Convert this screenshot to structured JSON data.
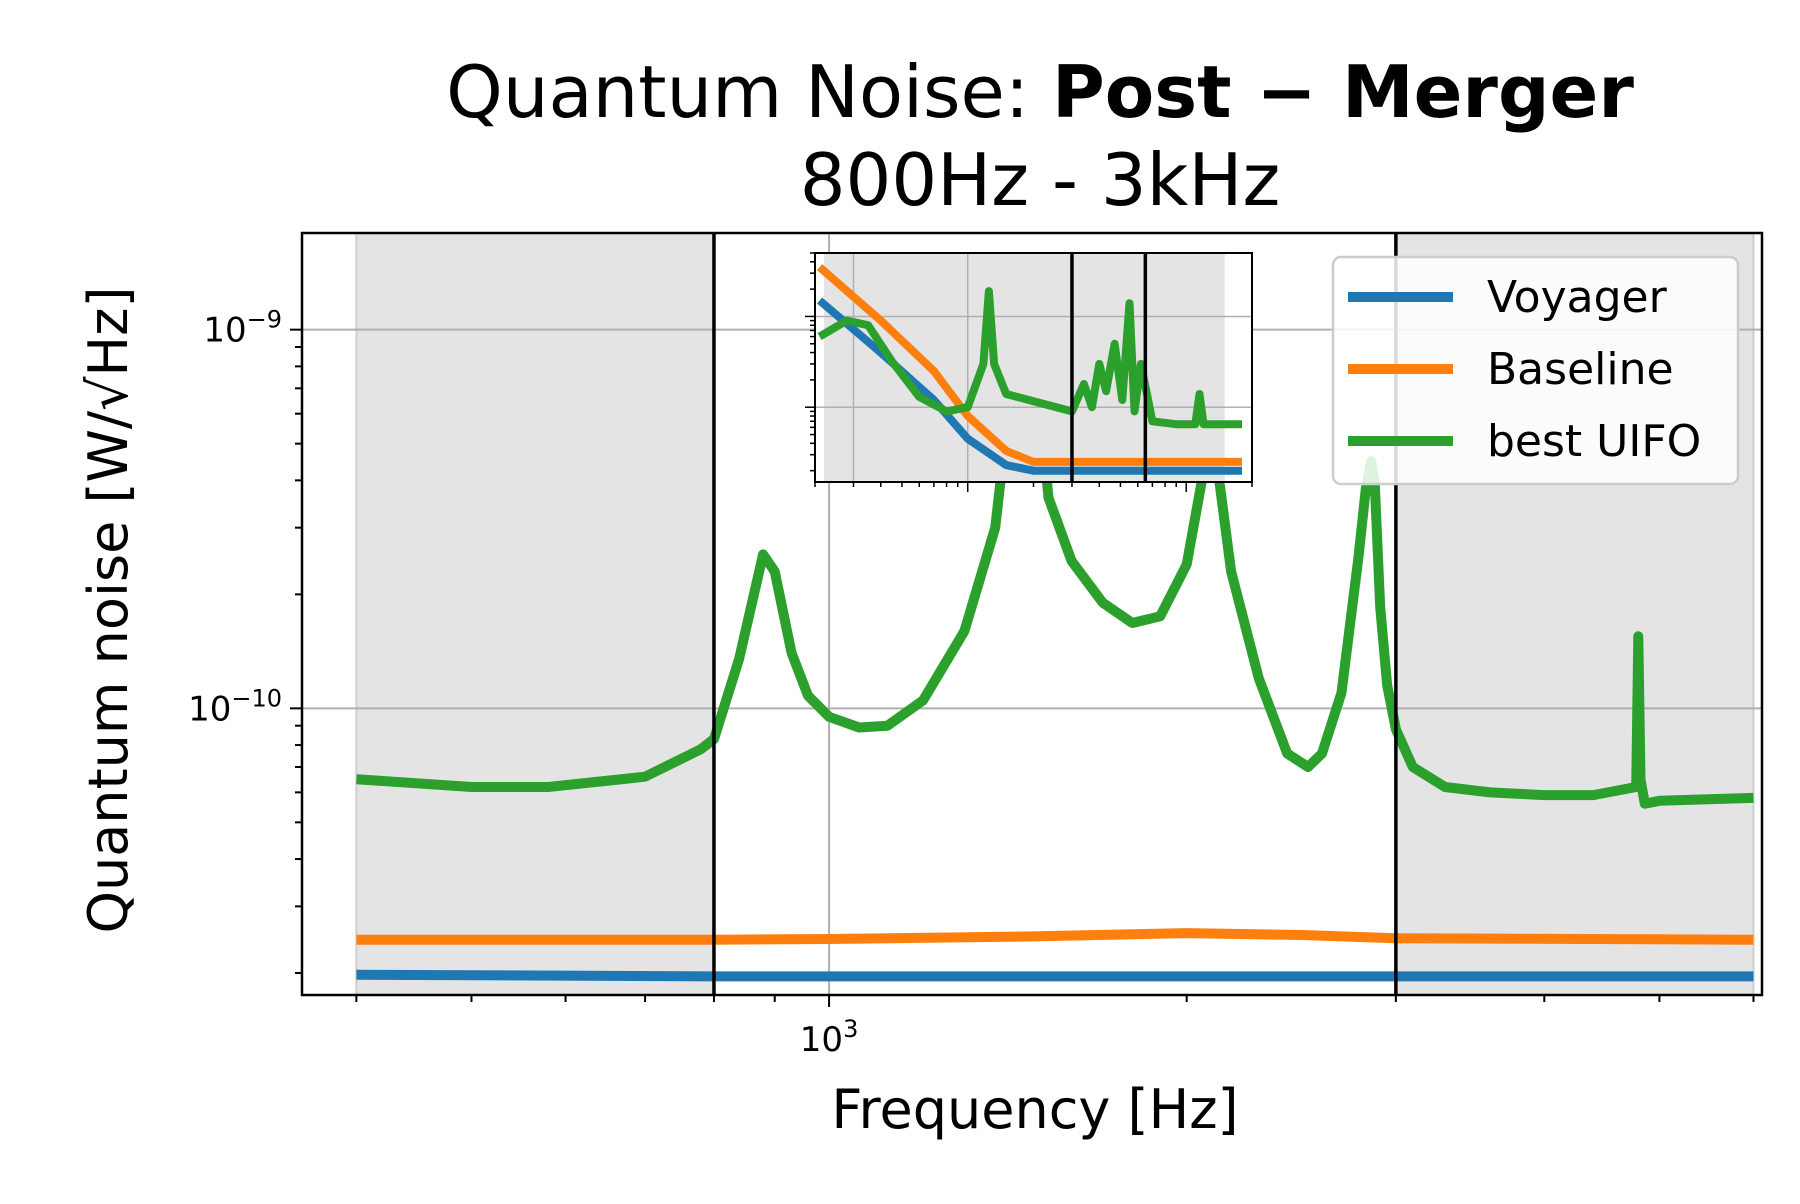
{
  "chart_data": {
    "type": "line",
    "title_prefix": "Quantum Noise: ",
    "title_bold": "Post − Merger",
    "subtitle": "800Hz - 3kHz",
    "xlabel": "Frequency [Hz]",
    "ylabel": "Quantum noise [W/√Hz]",
    "xscale": "log",
    "yscale": "log",
    "xlim": [
      360,
      6100
    ],
    "ylim": [
      1.75e-11,
      1.8e-09
    ],
    "x_tick_label": "10",
    "x_tick_label_exp": "3",
    "y_tick_labels": [
      {
        "base": "10",
        "exp": "−9",
        "value": 1e-09
      },
      {
        "base": "10",
        "exp": "−10",
        "value": 1e-10
      }
    ],
    "grid": true,
    "legend_position": "top-right",
    "shaded_regions": [
      [
        400,
        800
      ],
      [
        3000,
        6000
      ]
    ],
    "vertical_lines": [
      800,
      3000
    ],
    "series": [
      {
        "name": "Voyager",
        "color": "#1f77b4",
        "x": [
          400,
          800,
          1000,
          2000,
          3000,
          6000
        ],
        "y": [
          1.98e-11,
          1.96e-11,
          1.96e-11,
          1.96e-11,
          1.96e-11,
          1.96e-11
        ]
      },
      {
        "name": "Baseline",
        "color": "#ff7f0e",
        "x": [
          400,
          800,
          1000,
          1500,
          2000,
          2500,
          3000,
          6000
        ],
        "y": [
          2.45e-11,
          2.45e-11,
          2.46e-11,
          2.5e-11,
          2.55e-11,
          2.52e-11,
          2.47e-11,
          2.45e-11
        ]
      },
      {
        "name": "best UIFO",
        "color": "#2ca02c",
        "x": [
          400,
          500,
          580,
          700,
          780,
          800,
          840,
          880,
          900,
          930,
          960,
          1000,
          1060,
          1120,
          1200,
          1300,
          1380,
          1430,
          1460,
          1490,
          1530,
          1600,
          1700,
          1800,
          1900,
          2000,
          2060,
          2090,
          2120,
          2180,
          2300,
          2430,
          2530,
          2600,
          2700,
          2790,
          2830,
          2860,
          2880,
          2910,
          2950,
          3000,
          3100,
          3300,
          3600,
          4000,
          4400,
          4780,
          4800,
          4820,
          4860,
          5000,
          6000
        ],
        "y": [
          6.5e-11,
          6.2e-11,
          6.2e-11,
          6.6e-11,
          7.8e-11,
          8.3e-11,
          1.35e-10,
          2.55e-10,
          2.3e-10,
          1.4e-10,
          1.08e-10,
          9.5e-11,
          8.9e-11,
          9e-11,
          1.05e-10,
          1.6e-10,
          3e-10,
          8e-10,
          1.35e-09,
          8.5e-10,
          3.6e-10,
          2.45e-10,
          1.9e-10,
          1.68e-10,
          1.75e-10,
          2.4e-10,
          4e-10,
          1e-09,
          4.5e-10,
          2.3e-10,
          1.2e-10,
          7.6e-11,
          7e-11,
          7.6e-11,
          1.1e-10,
          2.5e-10,
          3.8e-10,
          4.5e-10,
          3.9e-10,
          1.85e-10,
          1.15e-10,
          8.8e-11,
          7e-11,
          6.2e-11,
          6e-11,
          5.9e-11,
          5.9e-11,
          6.2e-11,
          1.55e-10,
          6.5e-11,
          5.6e-11,
          5.7e-11,
          5.8e-11
        ]
      }
    ],
    "inset": {
      "xscale": "log",
      "yscale": "log",
      "shaded_region": true,
      "vertical_line_count": 2
    }
  }
}
